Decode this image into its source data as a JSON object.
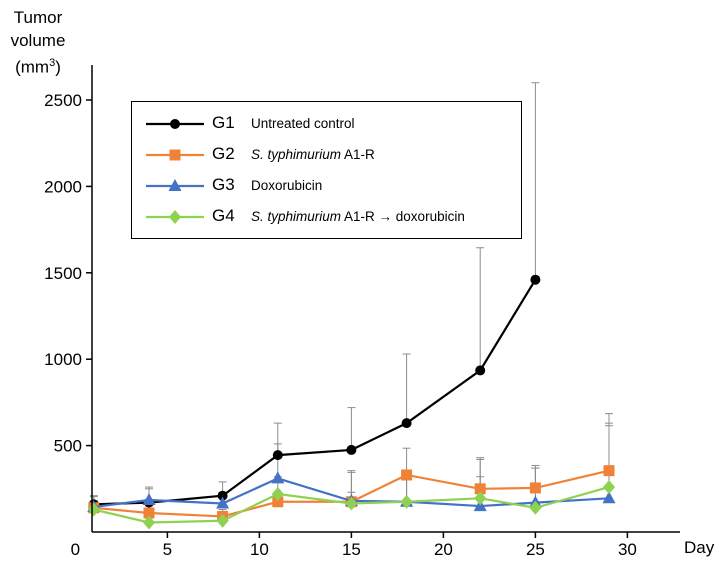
{
  "chart_data": {
    "type": "line",
    "title": "",
    "ylabel_line1": "Tumor",
    "ylabel_line2": "volume",
    "ylabel_unit_base": "(mm",
    "ylabel_unit_sup": "3",
    "ylabel_unit_end": ")",
    "xlabel": "Day",
    "xlim": [
      0,
      32.5
    ],
    "ylim": [
      0,
      2700
    ],
    "xticks": [
      0,
      5,
      10,
      15,
      20,
      25,
      30
    ],
    "yticks": [
      500,
      1000,
      1500,
      2000,
      2500
    ],
    "legend_position": "top-left",
    "series": [
      {
        "code": "G1",
        "name_italic": "",
        "name_plain": "Untreated control",
        "color": "#000000",
        "marker": "circle",
        "x": [
          1,
          4,
          8,
          11,
          15,
          18,
          22,
          25
        ],
        "y": [
          160,
          170,
          210,
          445,
          475,
          630,
          935,
          1460
        ],
        "err": [
          50,
          80,
          80,
          185,
          245,
          400,
          710,
          1140
        ]
      },
      {
        "code": "G2",
        "name_italic": "S. typhimurium",
        "name_plain": " A1-R",
        "color": "#f08237",
        "marker": "square",
        "x": [
          1,
          4,
          8,
          11,
          15,
          18,
          22,
          25,
          29
        ],
        "y": [
          140,
          110,
          90,
          175,
          175,
          330,
          250,
          255,
          355
        ],
        "err": [
          40,
          50,
          40,
          55,
          55,
          155,
          180,
          130,
          330
        ]
      },
      {
        "code": "G3",
        "name_italic": "",
        "name_plain": "Doxorubicin",
        "color": "#4472c4",
        "marker": "triangle",
        "x": [
          1,
          4,
          8,
          11,
          15,
          18,
          22,
          25,
          29
        ],
        "y": [
          145,
          185,
          165,
          310,
          180,
          175,
          150,
          170,
          195
        ],
        "err": [
          60,
          75,
          60,
          200,
          175,
          130,
          170,
          200,
          420
        ]
      },
      {
        "code": "G4",
        "name_italic": "S. typhimurium",
        "name_plain": " A1-R → doxorubicin",
        "color": "#8fd150",
        "marker": "diamond",
        "x": [
          1,
          4,
          8,
          11,
          15,
          18,
          22,
          25,
          29
        ],
        "y": [
          130,
          55,
          65,
          220,
          165,
          175,
          195,
          140,
          260
        ],
        "err": [
          50,
          35,
          30,
          100,
          180,
          140,
          225,
          230,
          370
        ]
      }
    ]
  }
}
